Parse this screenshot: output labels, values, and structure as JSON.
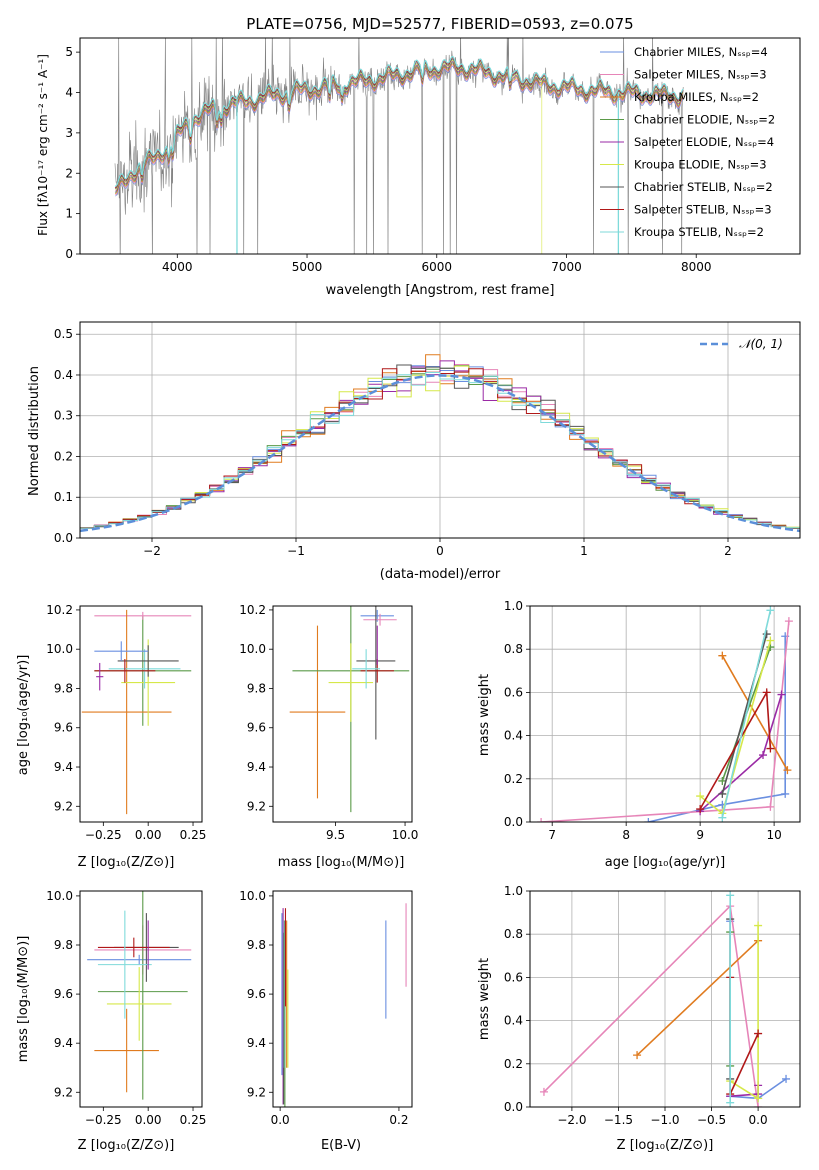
{
  "figure": {
    "title": "PLATE=0756, MJD=52577, FIBERID=0593, z=0.075"
  },
  "labels": {
    "spec_ylabel": "Flux [fλ10⁻¹⁷ erg cm⁻² s⁻¹ A⁻¹]",
    "spec_xlabel": "wavelength [Angstrom, rest frame]",
    "hist_ylabel": "Normed distribution",
    "hist_xlabel": "(data-model)/error",
    "hist_legend": "𝒩(0, 1)",
    "za_ylabel": "age  [log₁₀(age/yr)]",
    "za_xlabel": "Z [log₁₀(Z/Z⊙)]",
    "ma_xlabel": "mass [log₁₀(M/M⊙)]",
    "aw_xlabel": "age  [log₁₀(age/yr)]",
    "aw_ylabel": "mass weight",
    "zm_ylabel": "mass [log₁₀(M/M⊙)]",
    "zm_xlabel": "Z [log₁₀(Z/Z⊙)]",
    "em_xlabel": "E(B-V)",
    "zw_xlabel": "Z [log₁₀(Z/Z⊙)]",
    "zw_ylabel": "mass weight"
  },
  "chart_data": [
    {
      "id": "spectrum",
      "type": "line",
      "xlim": [
        3250,
        8800
      ],
      "ylim": [
        0,
        5.35
      ],
      "xticks": [
        4000,
        5000,
        6000,
        7000,
        8000
      ],
      "yticks": [
        0,
        1,
        2,
        3,
        4,
        5
      ],
      "legend_placement": "top-right",
      "data_color": "#808080",
      "series": [
        {
          "name": "Chabrier MILES, N_SSP=4",
          "color": "#6a8fe0",
          "lw": 0.6
        },
        {
          "name": "Salpeter MILES, N_SSP=3",
          "color": "#e685b8",
          "lw": 0.6
        },
        {
          "name": "Kroupa MILES, N_SSP=2",
          "color": "#e07b1f",
          "lw": 0.6
        },
        {
          "name": "Chabrier ELODIE, N_SSP=2",
          "color": "#5a9a48",
          "lw": 0.6
        },
        {
          "name": "Salpeter ELODIE, N_SSP=4",
          "color": "#9a2aa5",
          "lw": 0.6
        },
        {
          "name": "Kroupa ELODIE, N_SSP=3",
          "color": "#d6e84a",
          "lw": 0.6
        },
        {
          "name": "Chabrier STELIB, N_SSP=2",
          "color": "#555555",
          "lw": 0.6
        },
        {
          "name": "Salpeter STELIB, N_SSP=3",
          "color": "#b01818",
          "lw": 0.8
        },
        {
          "name": "Kroupa STELIB, N_SSP=2",
          "color": "#7fdada",
          "lw": 1.3
        }
      ],
      "continuum": [
        [
          3520,
          1.5
        ],
        [
          3650,
          2.0
        ],
        [
          3800,
          2.3
        ],
        [
          3950,
          2.7
        ],
        [
          4100,
          3.3
        ],
        [
          4300,
          3.6
        ],
        [
          4500,
          3.75
        ],
        [
          4800,
          3.95
        ],
        [
          5000,
          4.05
        ],
        [
          5300,
          4.2
        ],
        [
          5600,
          4.35
        ],
        [
          5900,
          4.55
        ],
        [
          6200,
          4.6
        ],
        [
          6500,
          4.4
        ],
        [
          6800,
          4.2
        ],
        [
          7000,
          4.1
        ],
        [
          7300,
          4.0
        ],
        [
          7600,
          3.95
        ],
        [
          7900,
          3.9
        ]
      ]
    },
    {
      "id": "residual_histogram",
      "type": "bar",
      "xlim": [
        -2.5,
        2.5
      ],
      "ylim": [
        0,
        0.53
      ],
      "xticks": [
        -2,
        -1,
        0,
        1,
        2
      ],
      "yticks": [
        0.0,
        0.1,
        0.2,
        0.3,
        0.4,
        0.5
      ],
      "grid": true,
      "legend_placement": "top-right",
      "bin_width": 0.1,
      "reference_curve": {
        "name": "N(0, 1)",
        "mu": 0,
        "sigma": 1,
        "color": "#5b8fd9"
      }
    },
    {
      "id": "Z_vs_age",
      "type": "scatter",
      "xlim": [
        -0.38,
        0.3
      ],
      "ylim": [
        9.12,
        10.22
      ],
      "xticks": [
        -0.25,
        0.0,
        0.25
      ],
      "yticks": [
        9.2,
        9.4,
        9.6,
        9.8,
        10.0,
        10.2
      ],
      "points": [
        {
          "x": -0.03,
          "y": 9.89,
          "xerr": 0.27,
          "yerr": 0.28,
          "color": "#5a9a48"
        },
        {
          "x": -0.03,
          "y": 10.17,
          "xerr": 0.27,
          "yerr": 0.02,
          "color": "#e685b8"
        },
        {
          "x": -0.12,
          "y": 9.68,
          "xerr": 0.25,
          "yerr": 0.52,
          "color": "#e07b1f"
        },
        {
          "x": 0.0,
          "y": 9.83,
          "xerr": 0.15,
          "yerr": 0.22,
          "color": "#d6e84a"
        },
        {
          "x": -0.02,
          "y": 9.9,
          "xerr": 0.2,
          "yerr": 0.1,
          "color": "#7fdada"
        },
        {
          "x": 0.0,
          "y": 9.94,
          "xerr": 0.17,
          "yerr": 0.08,
          "color": "#555555"
        },
        {
          "x": -0.15,
          "y": 9.99,
          "xerr": 0.15,
          "yerr": 0.05,
          "color": "#6a8fe0"
        },
        {
          "x": -0.13,
          "y": 9.89,
          "xerr": 0.17,
          "yerr": 0.06,
          "color": "#b01818"
        },
        {
          "x": -0.27,
          "y": 9.86,
          "xerr": 0.02,
          "yerr": 0.07,
          "color": "#9a2aa5"
        }
      ]
    },
    {
      "id": "mass_vs_age",
      "type": "scatter",
      "xlim": [
        9.05,
        10.05
      ],
      "ylim": [
        9.12,
        10.22
      ],
      "xticks": [
        9.5,
        10.0
      ],
      "yticks": [
        9.2,
        9.4,
        9.6,
        9.8,
        10.0,
        10.2
      ],
      "points": [
        {
          "x": 9.8,
          "y": 10.17,
          "xerr": 0.12,
          "yerr": 0.03,
          "color": "#6a8fe0"
        },
        {
          "x": 9.82,
          "y": 10.15,
          "xerr": 0.12,
          "yerr": 0.03,
          "color": "#e685b8"
        },
        {
          "x": 9.37,
          "y": 9.68,
          "xerr": 0.2,
          "yerr": 0.44,
          "color": "#e07b1f"
        },
        {
          "x": 9.61,
          "y": 9.89,
          "xerr": 0.42,
          "yerr": 0.72,
          "color": "#5a9a48"
        },
        {
          "x": 9.61,
          "y": 9.83,
          "xerr": 0.16,
          "yerr": 0.2,
          "color": "#d6e84a"
        },
        {
          "x": 9.79,
          "y": 9.94,
          "xerr": 0.14,
          "yerr": 0.4,
          "color": "#555555"
        },
        {
          "x": 9.8,
          "y": 9.89,
          "xerr": 0.12,
          "yerr": 0.06,
          "color": "#b01818"
        },
        {
          "x": 9.72,
          "y": 9.9,
          "xerr": 0.1,
          "yerr": 0.1,
          "color": "#7fdada"
        },
        {
          "x": 9.8,
          "y": 10.02,
          "xerr": 0.0,
          "yerr": 0.1,
          "color": "#9a2aa5"
        }
      ]
    },
    {
      "id": "age_vs_weight",
      "type": "line",
      "xlim": [
        6.7,
        10.35
      ],
      "ylim": [
        0,
        1.0
      ],
      "xticks": [
        7,
        8,
        9,
        10
      ],
      "yticks": [
        0.0,
        0.2,
        0.4,
        0.6,
        0.8,
        1.0
      ],
      "grid": true,
      "series": [
        {
          "color": "#6a8fe0",
          "points": [
            [
              8.3,
              0.0
            ],
            [
              9.3,
              0.08
            ],
            [
              10.15,
              0.13
            ],
            [
              10.15,
              0.86
            ]
          ]
        },
        {
          "color": "#e685b8",
          "points": [
            [
              6.85,
              0.0
            ],
            [
              9.95,
              0.07
            ],
            [
              10.2,
              0.93
            ]
          ]
        },
        {
          "color": "#e07b1f",
          "points": [
            [
              9.3,
              0.77
            ],
            [
              10.18,
              0.24
            ]
          ]
        },
        {
          "color": "#5a9a48",
          "points": [
            [
              9.3,
              0.19
            ],
            [
              9.95,
              0.81
            ]
          ]
        },
        {
          "color": "#9a2aa5",
          "points": [
            [
              9.0,
              0.05
            ],
            [
              9.85,
              0.31
            ],
            [
              10.1,
              0.59
            ]
          ]
        },
        {
          "color": "#d6e84a",
          "points": [
            [
              9.0,
              0.12
            ],
            [
              9.3,
              0.04
            ],
            [
              9.95,
              0.84
            ]
          ]
        },
        {
          "color": "#555555",
          "points": [
            [
              9.3,
              0.13
            ],
            [
              9.9,
              0.87
            ]
          ]
        },
        {
          "color": "#b01818",
          "points": [
            [
              9.0,
              0.06
            ],
            [
              9.9,
              0.6
            ],
            [
              9.95,
              0.34
            ]
          ]
        },
        {
          "color": "#7fdada",
          "points": [
            [
              9.3,
              0.02
            ],
            [
              9.95,
              0.98
            ]
          ]
        }
      ]
    },
    {
      "id": "Z_vs_mass",
      "type": "scatter",
      "xlim": [
        -0.38,
        0.3
      ],
      "ylim": [
        9.14,
        10.02
      ],
      "xticks": [
        -0.25,
        0.0,
        0.25
      ],
      "yticks": [
        9.2,
        9.4,
        9.6,
        9.8,
        10.0
      ],
      "points": [
        {
          "x": -0.03,
          "y": 9.78,
          "xerr": 0.27,
          "yerr": 0.1,
          "color": "#e685b8"
        },
        {
          "x": -0.05,
          "y": 9.74,
          "xerr": 0.29,
          "yerr": 0.02,
          "color": "#6a8fe0"
        },
        {
          "x": -0.12,
          "y": 9.37,
          "xerr": 0.18,
          "yerr": 0.17,
          "color": "#e07b1f"
        },
        {
          "x": -0.03,
          "y": 9.61,
          "xerr": 0.25,
          "yerr": 0.44,
          "color": "#5a9a48"
        },
        {
          "x": -0.05,
          "y": 9.56,
          "xerr": 0.18,
          "yerr": 0.15,
          "color": "#d6e84a"
        },
        {
          "x": -0.01,
          "y": 9.79,
          "xerr": 0.18,
          "yerr": 0.14,
          "color": "#555555"
        },
        {
          "x": -0.08,
          "y": 9.79,
          "xerr": 0.2,
          "yerr": 0.04,
          "color": "#b01818"
        },
        {
          "x": -0.13,
          "y": 9.72,
          "xerr": 0.15,
          "yerr": 0.22,
          "color": "#7fdada"
        },
        {
          "x": 0.0,
          "y": 9.8,
          "xerr": 0.0,
          "yerr": 0.1,
          "color": "#9a2aa5"
        }
      ]
    },
    {
      "id": "EBV_vs_mass",
      "type": "scatter",
      "xlim": [
        -0.012,
        0.222
      ],
      "ylim": [
        9.14,
        10.02
      ],
      "xticks": [
        0.0,
        0.2
      ],
      "yticks": [
        9.2,
        9.4,
        9.6,
        9.8,
        10.0
      ],
      "points": [
        {
          "x": 0.003,
          "y": 9.6,
          "yerr": 0.33,
          "color": "#6a8fe0"
        },
        {
          "x": 0.005,
          "y": 9.55,
          "yerr": 0.4,
          "color": "#9a2aa5"
        },
        {
          "x": 0.006,
          "y": 9.5,
          "yerr": 0.35,
          "color": "#555555"
        },
        {
          "x": 0.007,
          "y": 9.6,
          "yerr": 0.3,
          "color": "#7fdada"
        },
        {
          "x": 0.008,
          "y": 9.5,
          "yerr": 0.4,
          "color": "#5a9a48"
        },
        {
          "x": 0.009,
          "y": 9.75,
          "yerr": 0.2,
          "color": "#b01818"
        },
        {
          "x": 0.011,
          "y": 9.6,
          "yerr": 0.3,
          "color": "#e07b1f"
        },
        {
          "x": 0.013,
          "y": 9.5,
          "yerr": 0.2,
          "color": "#d6e84a"
        },
        {
          "x": 0.178,
          "y": 9.7,
          "yerr": 0.2,
          "color": "#6a8fe0"
        },
        {
          "x": 0.212,
          "y": 9.8,
          "yerr": 0.17,
          "color": "#e685b8"
        }
      ]
    },
    {
      "id": "Z_vs_weight",
      "type": "line",
      "xlim": [
        -2.45,
        0.45
      ],
      "ylim": [
        0,
        1.0
      ],
      "xticks": [
        -2.0,
        -1.5,
        -1.0,
        -0.5,
        0.0
      ],
      "yticks": [
        0.0,
        0.2,
        0.4,
        0.6,
        0.8,
        1.0
      ],
      "grid": true,
      "series": [
        {
          "color": "#6a8fe0",
          "points": [
            [
              -0.3,
              0.86
            ],
            [
              -0.3,
              0.05
            ],
            [
              0.0,
              0.04
            ],
            [
              0.3,
              0.13
            ]
          ]
        },
        {
          "color": "#e685b8",
          "points": [
            [
              -2.3,
              0.07
            ],
            [
              -0.3,
              0.93
            ],
            [
              0.0,
              0.0
            ]
          ]
        },
        {
          "color": "#e07b1f",
          "points": [
            [
              -1.3,
              0.24
            ],
            [
              0.0,
              0.77
            ]
          ]
        },
        {
          "color": "#5a9a48",
          "points": [
            [
              -0.3,
              0.81
            ],
            [
              -0.3,
              0.19
            ]
          ]
        },
        {
          "color": "#9a2aa5",
          "points": [
            [
              -0.3,
              0.05
            ],
            [
              0.0,
              0.06
            ],
            [
              0.0,
              0.1
            ]
          ]
        },
        {
          "color": "#d6e84a",
          "points": [
            [
              0.0,
              0.84
            ],
            [
              0.0,
              0.04
            ],
            [
              -0.3,
              0.12
            ]
          ]
        },
        {
          "color": "#555555",
          "points": [
            [
              -0.3,
              0.87
            ],
            [
              -0.3,
              0.13
            ]
          ]
        },
        {
          "color": "#b01818",
          "points": [
            [
              -0.3,
              0.6
            ],
            [
              -0.3,
              0.06
            ],
            [
              0.0,
              0.34
            ]
          ]
        },
        {
          "color": "#7fdada",
          "points": [
            [
              -0.3,
              0.98
            ],
            [
              -0.3,
              0.02
            ]
          ]
        }
      ]
    }
  ]
}
